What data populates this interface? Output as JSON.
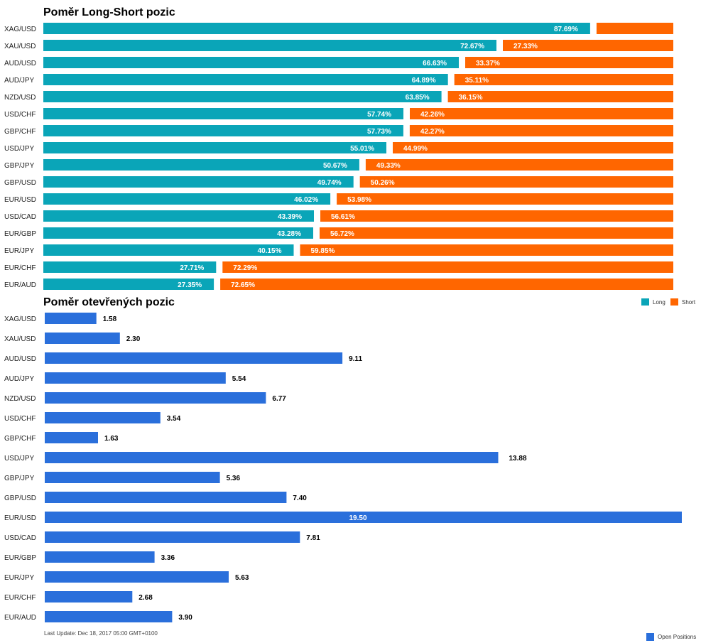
{
  "colors": {
    "long": "#0aa5b8",
    "short": "#ff6600",
    "open": "#2a6fdb"
  },
  "chart_data": [
    {
      "type": "bar",
      "orientation": "horizontal",
      "stacked": true,
      "title": "Poměr Long-Short pozic",
      "categories": [
        "XAG/USD",
        "XAU/USD",
        "AUD/USD",
        "AUD/JPY",
        "NZD/USD",
        "USD/CHF",
        "GBP/CHF",
        "USD/JPY",
        "GBP/JPY",
        "GBP/USD",
        "EUR/USD",
        "USD/CAD",
        "EUR/GBP",
        "EUR/JPY",
        "EUR/CHF",
        "EUR/AUD"
      ],
      "series": [
        {
          "name": "Long",
          "values": [
            87.69,
            72.67,
            66.63,
            64.89,
            63.85,
            57.74,
            57.73,
            55.01,
            50.67,
            49.74,
            46.02,
            43.39,
            43.28,
            40.15,
            27.71,
            27.35
          ]
        },
        {
          "name": "Short",
          "values": [
            12.31,
            27.33,
            33.37,
            35.11,
            36.15,
            42.26,
            42.27,
            44.99,
            49.33,
            50.26,
            53.98,
            56.61,
            56.72,
            59.85,
            72.29,
            72.65
          ]
        }
      ],
      "labels": {
        "long": [
          "87.69%",
          "72.67%",
          "66.63%",
          "64.89%",
          "63.85%",
          "57.74%",
          "57.73%",
          "55.01%",
          "50.67%",
          "49.74%",
          "46.02%",
          "43.39%",
          "43.28%",
          "40.15%",
          "27.71%",
          "27.35%"
        ],
        "short": [
          "",
          "27.33%",
          "33.37%",
          "35.11%",
          "36.15%",
          "42.26%",
          "42.27%",
          "44.99%",
          "49.33%",
          "50.26%",
          "53.98%",
          "56.61%",
          "56.72%",
          "59.85%",
          "72.29%",
          "72.65%"
        ]
      },
      "legend_position": "bottom-right",
      "grid": false
    },
    {
      "type": "bar",
      "orientation": "horizontal",
      "title": "Poměr otevřených pozic",
      "categories": [
        "XAG/USD",
        "XAU/USD",
        "AUD/USD",
        "AUD/JPY",
        "NZD/USD",
        "USD/CHF",
        "GBP/CHF",
        "USD/JPY",
        "GBP/JPY",
        "GBP/USD",
        "EUR/USD",
        "USD/CAD",
        "EUR/GBP",
        "EUR/JPY",
        "EUR/CHF",
        "EUR/AUD"
      ],
      "series": [
        {
          "name": "Open Positions",
          "values": [
            1.58,
            2.3,
            9.11,
            5.54,
            6.77,
            3.54,
            1.63,
            13.88,
            5.36,
            7.4,
            19.5,
            7.81,
            3.36,
            5.63,
            2.68,
            3.9
          ]
        }
      ],
      "labels": [
        "1.58",
        "2.30",
        "9.11",
        "5.54",
        "6.77",
        "3.54",
        "1.63",
        "13.88",
        "5.36",
        "7.40",
        "19.50",
        "7.81",
        "3.36",
        "5.63",
        "2.68",
        "3.90"
      ],
      "xlim": [
        0,
        19.5
      ],
      "legend_position": "bottom-right",
      "grid": false
    }
  ],
  "footer": {
    "last_update": "Last Update: Dec 18, 2017 05:00 GMT+0100"
  }
}
